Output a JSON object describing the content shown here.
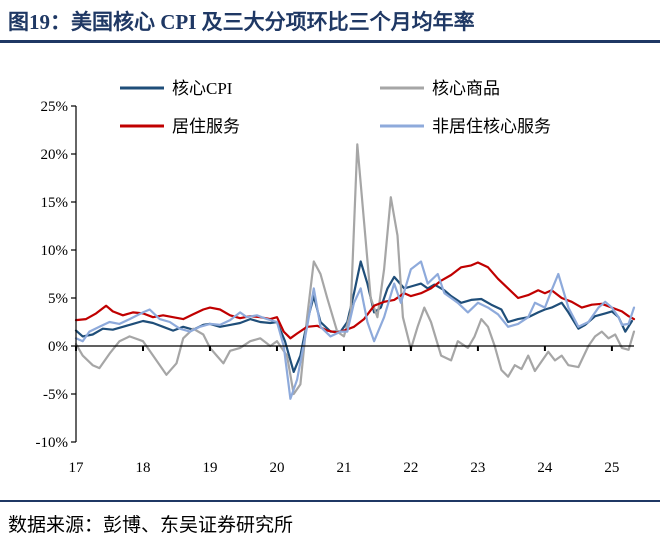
{
  "figure": {
    "title": "图19：美国核心 CPI 及三大分项环比三个月均年率",
    "source": "数据来源：彭博、东吴证券研究所"
  },
  "chart_data": {
    "type": "line",
    "title": "美国核心 CPI 及三大分项环比三个月均年率",
    "xlabel": "",
    "ylabel": "",
    "x_range": [
      2017.0,
      2025.33
    ],
    "ylim": [
      -10,
      25
    ],
    "yticks": [
      -10,
      -5,
      0,
      5,
      10,
      15,
      20,
      25
    ],
    "ytick_labels": [
      "-10%",
      "-5%",
      "0%",
      "5%",
      "10%",
      "15%",
      "20%",
      "25%"
    ],
    "xticks": [
      2017,
      2018,
      2019,
      2020,
      2021,
      2022,
      2023,
      2024,
      2025
    ],
    "xtick_labels": [
      "17",
      "18",
      "19",
      "20",
      "21",
      "22",
      "23",
      "24",
      "25"
    ],
    "grid": false,
    "legend_position": "top",
    "series": [
      {
        "name": "核心CPI",
        "color": "#1f4e79",
        "width": 2.2,
        "points": [
          [
            2017.0,
            1.6
          ],
          [
            2017.1,
            1.0
          ],
          [
            2017.25,
            1.2
          ],
          [
            2017.4,
            1.8
          ],
          [
            2017.55,
            1.7
          ],
          [
            2017.7,
            2.0
          ],
          [
            2017.85,
            2.3
          ],
          [
            2018.0,
            2.6
          ],
          [
            2018.15,
            2.4
          ],
          [
            2018.3,
            2.0
          ],
          [
            2018.45,
            1.6
          ],
          [
            2018.6,
            2.0
          ],
          [
            2018.75,
            1.7
          ],
          [
            2018.9,
            2.2
          ],
          [
            2019.0,
            2.3
          ],
          [
            2019.15,
            2.0
          ],
          [
            2019.3,
            2.2
          ],
          [
            2019.45,
            2.4
          ],
          [
            2019.6,
            2.8
          ],
          [
            2019.75,
            2.5
          ],
          [
            2019.9,
            2.4
          ],
          [
            2020.0,
            2.5
          ],
          [
            2020.12,
            0.5
          ],
          [
            2020.25,
            -2.7
          ],
          [
            2020.35,
            -1.0
          ],
          [
            2020.45,
            2.5
          ],
          [
            2020.55,
            5.2
          ],
          [
            2020.65,
            2.5
          ],
          [
            2020.8,
            1.5
          ],
          [
            2020.95,
            1.5
          ],
          [
            2021.05,
            2.5
          ],
          [
            2021.15,
            5.5
          ],
          [
            2021.25,
            8.8
          ],
          [
            2021.35,
            6.5
          ],
          [
            2021.45,
            3.5
          ],
          [
            2021.55,
            4.0
          ],
          [
            2021.65,
            6.0
          ],
          [
            2021.75,
            7.2
          ],
          [
            2021.9,
            6.0
          ],
          [
            2022.0,
            6.2
          ],
          [
            2022.15,
            6.5
          ],
          [
            2022.25,
            6.0
          ],
          [
            2022.35,
            6.4
          ],
          [
            2022.5,
            5.8
          ],
          [
            2022.6,
            5.2
          ],
          [
            2022.75,
            4.5
          ],
          [
            2022.9,
            4.8
          ],
          [
            2023.05,
            4.9
          ],
          [
            2023.2,
            4.3
          ],
          [
            2023.35,
            3.8
          ],
          [
            2023.45,
            2.5
          ],
          [
            2023.6,
            2.8
          ],
          [
            2023.75,
            3.0
          ],
          [
            2023.9,
            3.5
          ],
          [
            2024.0,
            3.8
          ],
          [
            2024.1,
            4.0
          ],
          [
            2024.25,
            4.5
          ],
          [
            2024.35,
            3.5
          ],
          [
            2024.5,
            1.8
          ],
          [
            2024.6,
            2.2
          ],
          [
            2024.75,
            3.1
          ],
          [
            2024.9,
            3.4
          ],
          [
            2025.0,
            3.6
          ],
          [
            2025.1,
            3.0
          ],
          [
            2025.2,
            1.5
          ],
          [
            2025.3,
            2.6
          ]
        ]
      },
      {
        "name": "核心商品",
        "color": "#a6a6a6",
        "width": 2.2,
        "points": [
          [
            2017.0,
            0.2
          ],
          [
            2017.1,
            -1.0
          ],
          [
            2017.25,
            -2.0
          ],
          [
            2017.35,
            -2.3
          ],
          [
            2017.5,
            -0.8
          ],
          [
            2017.65,
            0.5
          ],
          [
            2017.8,
            1.0
          ],
          [
            2018.0,
            0.5
          ],
          [
            2018.1,
            -0.5
          ],
          [
            2018.2,
            -1.5
          ],
          [
            2018.35,
            -3.0
          ],
          [
            2018.5,
            -1.8
          ],
          [
            2018.6,
            0.8
          ],
          [
            2018.75,
            1.8
          ],
          [
            2018.9,
            1.2
          ],
          [
            2019.0,
            -0.2
          ],
          [
            2019.1,
            -1.0
          ],
          [
            2019.2,
            -1.8
          ],
          [
            2019.3,
            -0.5
          ],
          [
            2019.45,
            -0.2
          ],
          [
            2019.6,
            0.5
          ],
          [
            2019.75,
            0.8
          ],
          [
            2019.9,
            0.0
          ],
          [
            2020.0,
            0.5
          ],
          [
            2020.15,
            -1.0
          ],
          [
            2020.25,
            -5.0
          ],
          [
            2020.35,
            -4.0
          ],
          [
            2020.45,
            3.0
          ],
          [
            2020.55,
            8.8
          ],
          [
            2020.65,
            7.5
          ],
          [
            2020.75,
            5.0
          ],
          [
            2020.9,
            1.5
          ],
          [
            2021.0,
            1.0
          ],
          [
            2021.1,
            3.5
          ],
          [
            2021.2,
            21.0
          ],
          [
            2021.3,
            13.0
          ],
          [
            2021.4,
            5.0
          ],
          [
            2021.5,
            3.0
          ],
          [
            2021.6,
            8.0
          ],
          [
            2021.7,
            15.5
          ],
          [
            2021.8,
            11.5
          ],
          [
            2021.88,
            3.0
          ],
          [
            2022.0,
            -0.3
          ],
          [
            2022.1,
            2.0
          ],
          [
            2022.2,
            4.0
          ],
          [
            2022.3,
            2.5
          ],
          [
            2022.45,
            -1.0
          ],
          [
            2022.6,
            -1.5
          ],
          [
            2022.7,
            0.5
          ],
          [
            2022.85,
            -0.2
          ],
          [
            2022.95,
            1.0
          ],
          [
            2023.05,
            2.8
          ],
          [
            2023.15,
            2.0
          ],
          [
            2023.25,
            0.0
          ],
          [
            2023.35,
            -2.5
          ],
          [
            2023.45,
            -3.2
          ],
          [
            2023.55,
            -2.0
          ],
          [
            2023.65,
            -2.4
          ],
          [
            2023.75,
            -1.0
          ],
          [
            2023.85,
            -2.6
          ],
          [
            2023.95,
            -1.6
          ],
          [
            2024.05,
            -0.6
          ],
          [
            2024.15,
            -1.5
          ],
          [
            2024.25,
            -1.0
          ],
          [
            2024.35,
            -2.0
          ],
          [
            2024.5,
            -2.2
          ],
          [
            2024.65,
            0.0
          ],
          [
            2024.75,
            1.0
          ],
          [
            2024.85,
            1.5
          ],
          [
            2024.95,
            0.8
          ],
          [
            2025.05,
            1.2
          ],
          [
            2025.15,
            -0.2
          ],
          [
            2025.25,
            -0.4
          ],
          [
            2025.33,
            1.5
          ]
        ]
      },
      {
        "name": "居住服务",
        "color": "#c00000",
        "width": 2.2,
        "points": [
          [
            2017.0,
            2.7
          ],
          [
            2017.15,
            2.8
          ],
          [
            2017.3,
            3.4
          ],
          [
            2017.45,
            4.2
          ],
          [
            2017.55,
            3.6
          ],
          [
            2017.7,
            3.2
          ],
          [
            2017.85,
            3.5
          ],
          [
            2018.0,
            3.4
          ],
          [
            2018.15,
            3.0
          ],
          [
            2018.3,
            3.2
          ],
          [
            2018.45,
            3.0
          ],
          [
            2018.6,
            2.8
          ],
          [
            2018.75,
            3.3
          ],
          [
            2018.9,
            3.8
          ],
          [
            2019.0,
            4.0
          ],
          [
            2019.15,
            3.8
          ],
          [
            2019.3,
            3.2
          ],
          [
            2019.45,
            2.9
          ],
          [
            2019.6,
            3.1
          ],
          [
            2019.75,
            3.0
          ],
          [
            2019.9,
            2.8
          ],
          [
            2020.0,
            3.0
          ],
          [
            2020.1,
            1.5
          ],
          [
            2020.2,
            0.8
          ],
          [
            2020.3,
            1.3
          ],
          [
            2020.45,
            2.0
          ],
          [
            2020.6,
            2.1
          ],
          [
            2020.75,
            1.6
          ],
          [
            2020.9,
            1.4
          ],
          [
            2021.0,
            1.6
          ],
          [
            2021.15,
            2.0
          ],
          [
            2021.3,
            2.8
          ],
          [
            2021.45,
            4.2
          ],
          [
            2021.6,
            4.6
          ],
          [
            2021.75,
            4.8
          ],
          [
            2021.9,
            5.5
          ],
          [
            2022.0,
            5.2
          ],
          [
            2022.15,
            5.5
          ],
          [
            2022.3,
            6.0
          ],
          [
            2022.45,
            6.8
          ],
          [
            2022.6,
            7.4
          ],
          [
            2022.75,
            8.2
          ],
          [
            2022.9,
            8.4
          ],
          [
            2023.0,
            8.7
          ],
          [
            2023.15,
            8.2
          ],
          [
            2023.3,
            7.0
          ],
          [
            2023.45,
            6.0
          ],
          [
            2023.6,
            5.0
          ],
          [
            2023.75,
            5.3
          ],
          [
            2023.9,
            5.8
          ],
          [
            2024.0,
            5.5
          ],
          [
            2024.1,
            5.8
          ],
          [
            2024.25,
            5.0
          ],
          [
            2024.4,
            4.6
          ],
          [
            2024.55,
            4.0
          ],
          [
            2024.7,
            4.3
          ],
          [
            2024.85,
            4.4
          ],
          [
            2025.0,
            4.0
          ],
          [
            2025.15,
            3.6
          ],
          [
            2025.25,
            3.1
          ],
          [
            2025.33,
            2.8
          ]
        ]
      },
      {
        "name": "非居住核心服务",
        "color": "#8eaadb",
        "width": 2.2,
        "points": [
          [
            2017.0,
            0.8
          ],
          [
            2017.1,
            0.5
          ],
          [
            2017.2,
            1.5
          ],
          [
            2017.35,
            2.0
          ],
          [
            2017.5,
            2.5
          ],
          [
            2017.65,
            2.3
          ],
          [
            2017.8,
            2.8
          ],
          [
            2018.0,
            3.5
          ],
          [
            2018.1,
            3.8
          ],
          [
            2018.25,
            2.8
          ],
          [
            2018.4,
            2.5
          ],
          [
            2018.55,
            1.8
          ],
          [
            2018.7,
            1.5
          ],
          [
            2018.85,
            2.0
          ],
          [
            2019.0,
            2.3
          ],
          [
            2019.15,
            2.2
          ],
          [
            2019.3,
            2.7
          ],
          [
            2019.45,
            3.5
          ],
          [
            2019.55,
            3.0
          ],
          [
            2019.7,
            3.2
          ],
          [
            2019.85,
            2.8
          ],
          [
            2020.0,
            2.5
          ],
          [
            2020.1,
            0.0
          ],
          [
            2020.2,
            -5.5
          ],
          [
            2020.3,
            -3.5
          ],
          [
            2020.45,
            2.0
          ],
          [
            2020.55,
            6.0
          ],
          [
            2020.65,
            2.0
          ],
          [
            2020.8,
            1.0
          ],
          [
            2020.95,
            1.5
          ],
          [
            2021.05,
            1.5
          ],
          [
            2021.15,
            4.5
          ],
          [
            2021.25,
            6.0
          ],
          [
            2021.35,
            2.5
          ],
          [
            2021.45,
            0.5
          ],
          [
            2021.6,
            3.0
          ],
          [
            2021.75,
            6.5
          ],
          [
            2021.85,
            4.5
          ],
          [
            2022.0,
            8.0
          ],
          [
            2022.15,
            8.8
          ],
          [
            2022.25,
            6.5
          ],
          [
            2022.4,
            7.5
          ],
          [
            2022.5,
            5.5
          ],
          [
            2022.6,
            5.0
          ],
          [
            2022.7,
            4.5
          ],
          [
            2022.85,
            3.5
          ],
          [
            2023.0,
            4.5
          ],
          [
            2023.15,
            4.0
          ],
          [
            2023.3,
            3.3
          ],
          [
            2023.45,
            2.0
          ],
          [
            2023.6,
            2.3
          ],
          [
            2023.75,
            3.0
          ],
          [
            2023.85,
            4.5
          ],
          [
            2024.0,
            4.0
          ],
          [
            2024.1,
            5.8
          ],
          [
            2024.2,
            7.5
          ],
          [
            2024.35,
            4.0
          ],
          [
            2024.5,
            2.0
          ],
          [
            2024.65,
            2.5
          ],
          [
            2024.8,
            4.0
          ],
          [
            2024.9,
            4.6
          ],
          [
            2025.0,
            4.0
          ],
          [
            2025.1,
            3.0
          ],
          [
            2025.15,
            2.2
          ],
          [
            2025.25,
            2.3
          ],
          [
            2025.33,
            4.0
          ]
        ]
      }
    ]
  }
}
